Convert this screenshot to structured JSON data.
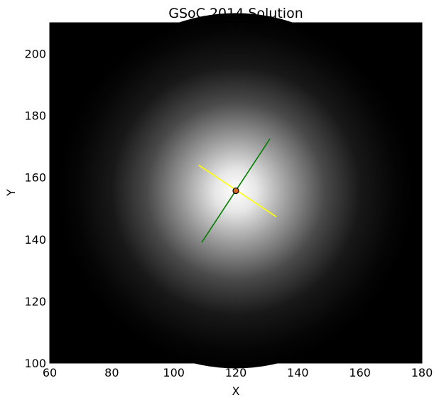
{
  "chart_data": {
    "type": "heatmap",
    "title": "GSoC 2014 Solution",
    "xlabel": "X",
    "ylabel": "Y",
    "xlim": [
      60,
      180
    ],
    "ylim": [
      100,
      210
    ],
    "xticks": [
      60,
      80,
      100,
      120,
      140,
      160,
      180
    ],
    "yticks": [
      100,
      120,
      140,
      160,
      180,
      200
    ],
    "grid": false,
    "image": {
      "description_colormap": "grayscale",
      "peak_center": [
        120.0,
        155.7
      ],
      "background": "#000000",
      "peak_color": "#ffffff"
    },
    "overlays": [
      {
        "name": "major-axis",
        "color": "#008000",
        "x": [
          109,
          131
        ],
        "y": [
          139,
          172.5
        ]
      },
      {
        "name": "minor-axis",
        "color": "#ffff00",
        "x": [
          108,
          133
        ],
        "y": [
          164,
          147.3
        ]
      }
    ],
    "marker": {
      "x": 120.0,
      "y": 155.7,
      "color": "#d2691e",
      "edge": "#000000"
    }
  }
}
